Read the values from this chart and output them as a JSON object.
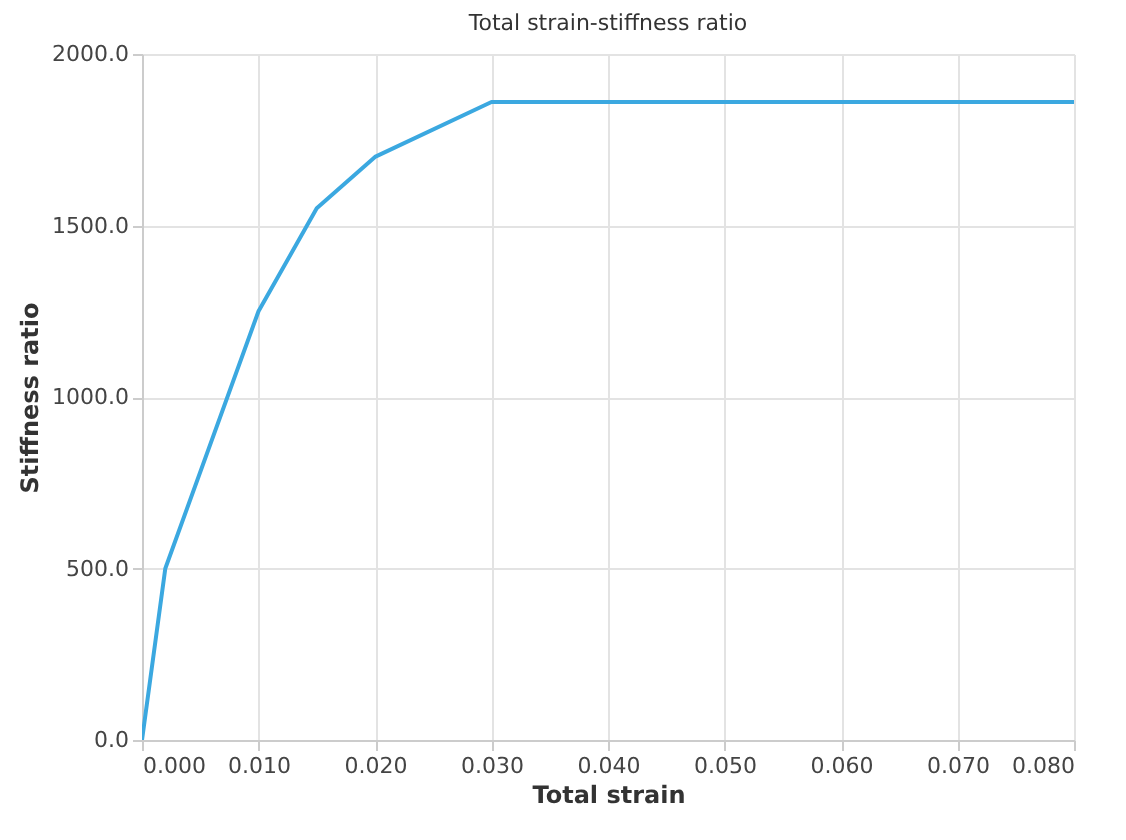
{
  "chart_data": {
    "type": "line",
    "title": "Total strain-stiffness ratio",
    "xlabel": "Total strain",
    "ylabel": "Stiffness ratio",
    "x": [
      0,
      0.002,
      0.01,
      0.015,
      0.02,
      0.03,
      0.08
    ],
    "series": [
      {
        "color": "#3ba8e0",
        "values": [
          0,
          500,
          1250,
          1550,
          1700,
          1860,
          1860
        ]
      }
    ],
    "xlim": [
      0,
      0.08
    ],
    "xticks": [
      {
        "value": 0,
        "label": "0.000"
      },
      {
        "value": 0.01,
        "label": "0.010"
      },
      {
        "value": 0.02,
        "label": "0.020"
      },
      {
        "value": 0.03,
        "label": "0.030"
      },
      {
        "value": 0.04,
        "label": "0.040"
      },
      {
        "value": 0.05,
        "label": "0.050"
      },
      {
        "value": 0.06,
        "label": "0.060"
      },
      {
        "value": 0.07,
        "label": "0.070"
      },
      {
        "value": 0.08,
        "label": "0.080"
      }
    ],
    "ylim": [
      0,
      2000
    ],
    "yticks": [
      {
        "value": 0,
        "label": "0.0"
      },
      {
        "value": 500,
        "label": "500.0"
      },
      {
        "value": 1000,
        "label": "1000.0"
      },
      {
        "value": 1500,
        "label": "1500.0"
      },
      {
        "value": 2000,
        "label": "2000.0"
      }
    ],
    "grid": true,
    "marker": "none",
    "line_style": "solid"
  }
}
